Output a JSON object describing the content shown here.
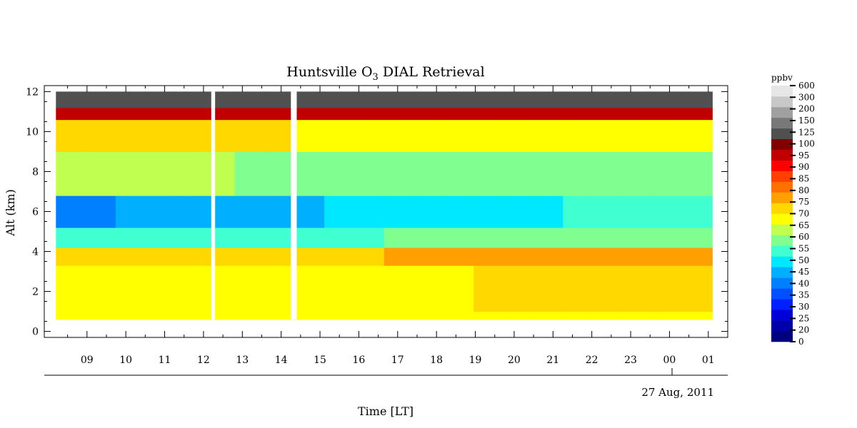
{
  "chart_data": {
    "type": "heatmap",
    "title_main": "Huntsville O",
    "title_sub": "3",
    "title_rest": " DIAL Retrieval",
    "xlabel": "Time [LT]",
    "ylabel": "Alt (km)",
    "date_label": "27 Aug, 2011",
    "x_tick_labels": [
      "09",
      "10",
      "11",
      "12",
      "13",
      "14",
      "15",
      "16",
      "17",
      "18",
      "19",
      "20",
      "21",
      "22",
      "23",
      "00",
      "01"
    ],
    "x_tick_hours": [
      9,
      10,
      11,
      12,
      13,
      14,
      15,
      16,
      17,
      18,
      19,
      20,
      21,
      22,
      23,
      24,
      25
    ],
    "xlim_hours": [
      7.9,
      25.5
    ],
    "ylim_km": [
      -0.3,
      12.3
    ],
    "y_ticks": [
      0,
      2,
      4,
      6,
      8,
      10,
      12
    ],
    "data_altitude_range_km": [
      0.6,
      12.0
    ],
    "data_time_range_hours": [
      8.2,
      25.1
    ],
    "gaps_hours": [
      [
        12.2,
        12.3
      ],
      [
        14.25,
        14.4
      ]
    ],
    "colorbar_unit": "ppbv",
    "colorbar_levels": [
      "0",
      "20",
      "25",
      "30",
      "35",
      "40",
      "45",
      "50",
      "55",
      "60",
      "65",
      "70",
      "75",
      "80",
      "85",
      "90",
      "95",
      "100",
      "125",
      "150",
      "200",
      "300",
      "600"
    ],
    "colorbar_colors": [
      "#000080",
      "#0000a8",
      "#0000d8",
      "#0020ff",
      "#0050ff",
      "#0080ff",
      "#00b0ff",
      "#00e8ff",
      "#40ffd0",
      "#80ff90",
      "#c0ff50",
      "#ffff00",
      "#ffd800",
      "#ffa000",
      "#ff7000",
      "#ff4000",
      "#ff0000",
      "#c00000",
      "#800000",
      "#505050",
      "#787878",
      "#a0a0a0",
      "#c8c8c8",
      "#e6e6e6"
    ],
    "profile_layers": [
      {
        "alt_min": 0.6,
        "alt_max": 1.0,
        "ppbv_start": 72,
        "ppbv_end": 70
      },
      {
        "alt_min": 1.0,
        "alt_max": 3.3,
        "ppbv_start": 70,
        "ppbv_end": 78
      },
      {
        "alt_min": 3.3,
        "alt_max": 4.2,
        "ppbv_start": 78,
        "ppbv_end": 82
      },
      {
        "alt_min": 4.2,
        "alt_max": 5.2,
        "ppbv_start": 58,
        "ppbv_end": 62
      },
      {
        "alt_min": 5.2,
        "alt_max": 6.8,
        "ppbv_start": 44,
        "ppbv_end": 58
      },
      {
        "alt_min": 6.8,
        "alt_max": 9.0,
        "ppbv_start": 66,
        "ppbv_end": 62
      },
      {
        "alt_min": 9.0,
        "alt_max": 10.6,
        "ppbv_start": 78,
        "ppbv_end": 70
      },
      {
        "alt_min": 10.6,
        "alt_max": 11.2,
        "ppbv_start": 105,
        "ppbv_end": 110
      },
      {
        "alt_min": 11.2,
        "alt_max": 12.0,
        "ppbv_start": 160,
        "ppbv_end": 150
      }
    ]
  }
}
